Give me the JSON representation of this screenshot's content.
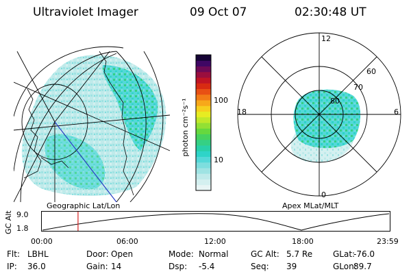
{
  "header": {
    "title": "Ultraviolet Imager",
    "date": "09 Oct 07",
    "time": "02:30:48 UT"
  },
  "colorbar": {
    "label": "photon cm⁻²s⁻¹",
    "ticks": [
      {
        "label": "100",
        "value": 100
      },
      {
        "label": "10",
        "value": 10
      }
    ],
    "colors": [
      "#e8f5f5",
      "#d4f0f0",
      "#bfeaea",
      "#9fe3e3",
      "#7ddede",
      "#54d8d8",
      "#2ed4c8",
      "#29d0a8",
      "#35d084",
      "#46d25e",
      "#66d83e",
      "#93e034",
      "#c0e82a",
      "#e7ec22",
      "#f6cf1e",
      "#f7a81a",
      "#f27c17",
      "#e85014",
      "#d82b12",
      "#c01424",
      "#9a0e3e",
      "#6c0a56",
      "#3f0764",
      "#160436"
    ]
  },
  "geo_panel": {
    "label": "Geographic Lat/Lon",
    "icon": "geographic-auroral-image"
  },
  "apex_panel": {
    "label": "Apex MLat/MLT",
    "hour_labels": [
      "12",
      "18",
      "6",
      "0"
    ],
    "lat_labels": [
      "60",
      "70",
      "80"
    ]
  },
  "altitude_plot": {
    "ylabel": "GC Alt",
    "ytick_top": "9.0",
    "ytick_bottom": "1.8",
    "ylim": [
      1.8,
      9.0
    ],
    "xticks": [
      "00:00",
      "06:00",
      "12:00",
      "18:00",
      "23:59"
    ],
    "current_time_marker": "02:30",
    "accent_color": "#d42020"
  },
  "status": [
    [
      {
        "key": "Flt:",
        "val": "LBHL"
      },
      {
        "key": "Door:",
        "val": "Open"
      },
      {
        "key": "Mode:",
        "val": "Normal"
      },
      {
        "key": "GC Alt:",
        "val": "5.7 Re"
      },
      {
        "key": "GLat:",
        "val": "-76.0"
      }
    ],
    [
      {
        "key": "IP:",
        "val": "36.0"
      },
      {
        "key": "Gain:",
        "val": "14"
      },
      {
        "key": "Dsp:",
        "val": "-5.4"
      },
      {
        "key": "Seq:",
        "val": "39"
      },
      {
        "key": "GLon:",
        "val": "89.7"
      }
    ]
  ]
}
